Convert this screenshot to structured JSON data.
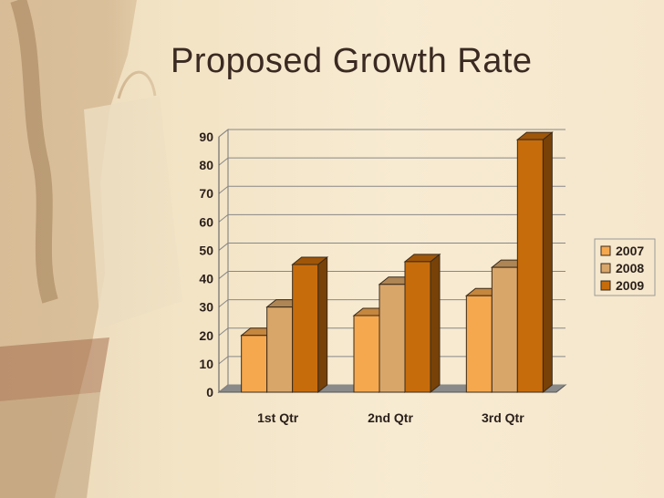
{
  "slide": {
    "title": "Proposed Growth Rate"
  },
  "colors": {
    "background": "#f5e7cc",
    "series_2007": "#f6a84e",
    "series_2008": "#d9a66a",
    "series_2009": "#c76c0b"
  },
  "chart_data": {
    "type": "bar",
    "categories": [
      "1st Qtr",
      "2nd Qtr",
      "3rd Qtr"
    ],
    "series": [
      {
        "name": "2007",
        "values": [
          20,
          27,
          34
        ]
      },
      {
        "name": "2008",
        "values": [
          30,
          38,
          44
        ]
      },
      {
        "name": "2009",
        "values": [
          45,
          46,
          89
        ]
      }
    ],
    "yticks": [
      0,
      10,
      20,
      30,
      40,
      50,
      60,
      70,
      80,
      90
    ],
    "ylim": [
      0,
      90
    ],
    "grid": true,
    "legend": "right",
    "style": "3d-clustered-column"
  }
}
